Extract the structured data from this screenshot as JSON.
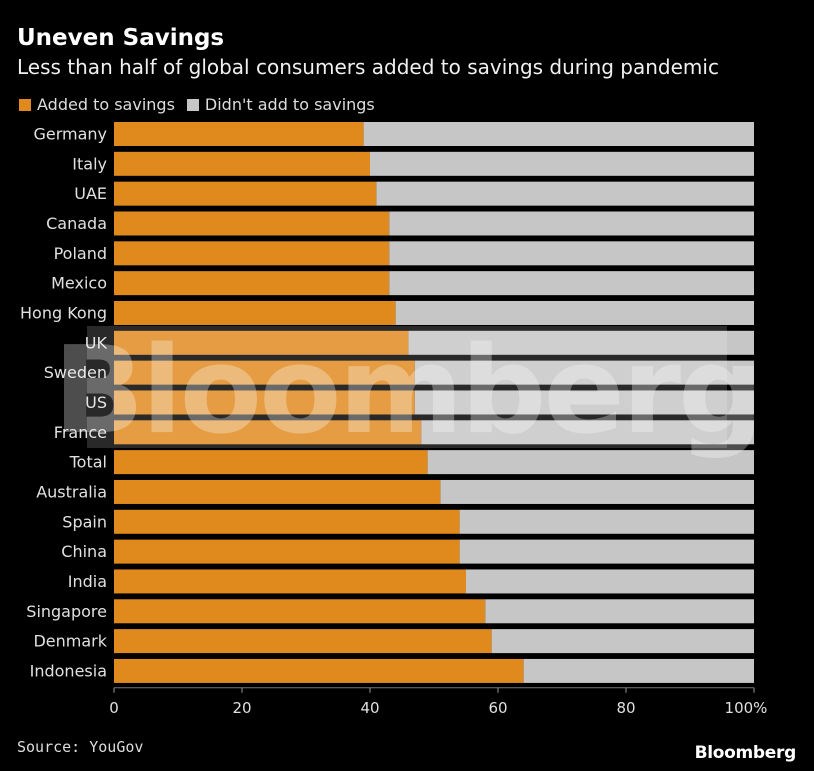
{
  "header": {
    "title": "Uneven Savings",
    "subtitle": "Less than half of global consumers added to savings during pandemic"
  },
  "colors": {
    "added": "#e08a1e",
    "not_added": "#c6c6c6",
    "background": "#000000"
  },
  "legend": {
    "items": [
      {
        "label": "Added to savings"
      },
      {
        "label": "Didn't add to savings"
      }
    ]
  },
  "watermark": "Bloomberg",
  "footer": {
    "source": "Source: YouGov",
    "brand": "Bloomberg"
  },
  "chart_data": {
    "type": "bar",
    "orientation": "horizontal",
    "stacked": true,
    "title": "Uneven Savings",
    "subtitle": "Less than half of global consumers added to savings during pandemic",
    "categories": [
      "Germany",
      "Italy",
      "UAE",
      "Canada",
      "Poland",
      "Mexico",
      "Hong Kong",
      "UK",
      "Sweden",
      "US",
      "France",
      "Total",
      "Australia",
      "Spain",
      "China",
      "India",
      "Singapore",
      "Denmark",
      "Indonesia"
    ],
    "series": [
      {
        "name": "Added to savings",
        "values": [
          39,
          40,
          41,
          43,
          43,
          43,
          44,
          46,
          47,
          47,
          48,
          49,
          51,
          54,
          54,
          55,
          58,
          59,
          64
        ]
      },
      {
        "name": "Didn't add to savings",
        "values": [
          61,
          60,
          59,
          57,
          57,
          57,
          56,
          54,
          53,
          53,
          52,
          51,
          49,
          46,
          46,
          45,
          42,
          41,
          36
        ]
      }
    ],
    "xlim": [
      0,
      100
    ],
    "xticks": [
      "0",
      "20",
      "40",
      "60",
      "80",
      "100%"
    ],
    "xtick_values": [
      0,
      20,
      40,
      60,
      80,
      100
    ],
    "legend_position": "top-left",
    "grid": false
  }
}
